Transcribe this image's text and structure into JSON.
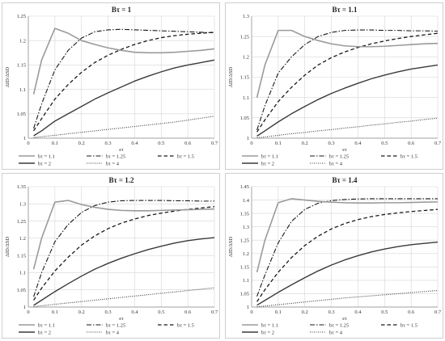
{
  "legend_entries": [
    {
      "label": "bτ = 1.1",
      "color": "#9a9a9a",
      "dash": "",
      "width": 1.6
    },
    {
      "label": "bτ = 1.25",
      "color": "#1a1a1a",
      "dash": "6 2 1.5 2",
      "width": 1.1
    },
    {
      "label": "bτ = 1.5",
      "color": "#1a1a1a",
      "dash": "4.5 3",
      "width": 1.3
    },
    {
      "label": "bτ = 2",
      "color": "#3a3a3a",
      "dash": "",
      "width": 1.4
    },
    {
      "label": "bτ = 4",
      "color": "#3a3a3a",
      "dash": "1 1.5",
      "width": 1.1
    }
  ],
  "chart_data": [
    {
      "type": "line",
      "title": "Bτ = 1",
      "xlabel": "eτ",
      "ylabel": "ΔID/ΔSD",
      "xlim": [
        0,
        0.7
      ],
      "ylim": [
        1,
        1.25
      ],
      "xticks": [
        "0",
        "0.1",
        "0.2",
        "0.3",
        "0.4",
        "0.5",
        "0.6",
        "0.7"
      ],
      "yticks": [
        "1",
        "1.05",
        "1.1",
        "1.15",
        "1.2",
        "1.25"
      ],
      "grid": true,
      "legend_position": "bottom",
      "x": [
        0.02,
        0.05,
        0.1,
        0.15,
        0.2,
        0.25,
        0.3,
        0.35,
        0.4,
        0.45,
        0.5,
        0.55,
        0.6,
        0.65,
        0.7
      ],
      "series": [
        {
          "name": "bτ = 1.1",
          "values": [
            1.09,
            1.16,
            1.225,
            1.215,
            1.2,
            1.192,
            1.185,
            1.18,
            1.176,
            1.175,
            1.175,
            1.176,
            1.178,
            1.18,
            1.183
          ]
        },
        {
          "name": "bτ = 1.25",
          "values": [
            1.02,
            1.07,
            1.14,
            1.18,
            1.205,
            1.218,
            1.222,
            1.223,
            1.222,
            1.221,
            1.22,
            1.219,
            1.218,
            1.217,
            1.216
          ]
        },
        {
          "name": "bτ = 1.5",
          "values": [
            1.015,
            1.04,
            1.08,
            1.11,
            1.135,
            1.155,
            1.17,
            1.182,
            1.192,
            1.2,
            1.206,
            1.21,
            1.213,
            1.215,
            1.217
          ]
        },
        {
          "name": "bτ = 2",
          "values": [
            1.005,
            1.015,
            1.035,
            1.05,
            1.065,
            1.08,
            1.093,
            1.105,
            1.117,
            1.127,
            1.136,
            1.144,
            1.15,
            1.155,
            1.16
          ]
        },
        {
          "name": "bτ = 4",
          "values": [
            1.001,
            1.003,
            1.006,
            1.009,
            1.012,
            1.015,
            1.018,
            1.021,
            1.024,
            1.027,
            1.03,
            1.033,
            1.037,
            1.041,
            1.045
          ]
        }
      ]
    },
    {
      "type": "line",
      "title": "Bτ = 1.1",
      "xlabel": "eτ",
      "ylabel": "ΔID/ΔSD",
      "xlim": [
        0,
        0.7
      ],
      "ylim": [
        1,
        1.3
      ],
      "xticks": [
        "0",
        "0.1",
        "0.2",
        "0.3",
        "0.4",
        "0.5",
        "0.6",
        "0.7"
      ],
      "yticks": [
        "1",
        "1.05",
        "1.1",
        "1.15",
        "1.2",
        "1.25",
        "1.3"
      ],
      "grid": true,
      "legend_position": "bottom",
      "x": [
        0.02,
        0.05,
        0.1,
        0.15,
        0.2,
        0.25,
        0.3,
        0.35,
        0.4,
        0.45,
        0.5,
        0.55,
        0.6,
        0.65,
        0.7
      ],
      "series": [
        {
          "name": "bτ = 1.1",
          "values": [
            1.1,
            1.18,
            1.265,
            1.265,
            1.25,
            1.24,
            1.232,
            1.227,
            1.225,
            1.225,
            1.226,
            1.228,
            1.23,
            1.232,
            1.233
          ]
        },
        {
          "name": "bτ = 1.25",
          "values": [
            1.02,
            1.08,
            1.16,
            1.2,
            1.23,
            1.25,
            1.26,
            1.265,
            1.266,
            1.266,
            1.265,
            1.265,
            1.264,
            1.264,
            1.263
          ]
        },
        {
          "name": "bτ = 1.5",
          "values": [
            1.015,
            1.045,
            1.09,
            1.125,
            1.155,
            1.18,
            1.198,
            1.212,
            1.223,
            1.232,
            1.239,
            1.245,
            1.25,
            1.254,
            1.258
          ]
        },
        {
          "name": "bτ = 2",
          "values": [
            1.005,
            1.018,
            1.04,
            1.06,
            1.078,
            1.095,
            1.11,
            1.123,
            1.135,
            1.146,
            1.155,
            1.163,
            1.17,
            1.175,
            1.18
          ]
        },
        {
          "name": "bτ = 4",
          "values": [
            1.001,
            1.003,
            1.007,
            1.011,
            1.014,
            1.018,
            1.021,
            1.025,
            1.028,
            1.032,
            1.035,
            1.039,
            1.042,
            1.046,
            1.049
          ]
        }
      ]
    },
    {
      "type": "line",
      "title": "Bτ = 1.2",
      "xlabel": "eτ",
      "ylabel": "ΔID/ΔSD",
      "xlim": [
        0,
        0.7
      ],
      "ylim": [
        1,
        1.35
      ],
      "xticks": [
        "0",
        "0.1",
        "0.2",
        "0.3",
        "0.4",
        "0.5",
        "0.6",
        "0.7"
      ],
      "yticks": [
        "1",
        "1.05",
        "1.1",
        "1.15",
        "1.2",
        "1.25",
        "1.3",
        "1.35"
      ],
      "grid": true,
      "legend_position": "bottom",
      "x": [
        0.02,
        0.05,
        0.1,
        0.15,
        0.2,
        0.25,
        0.3,
        0.35,
        0.4,
        0.45,
        0.5,
        0.55,
        0.6,
        0.65,
        0.7
      ],
      "series": [
        {
          "name": "bτ = 1.1",
          "values": [
            1.11,
            1.2,
            1.305,
            1.31,
            1.298,
            1.29,
            1.284,
            1.281,
            1.28,
            1.28,
            1.281,
            1.282,
            1.283,
            1.284,
            1.285
          ]
        },
        {
          "name": "bτ = 1.25",
          "values": [
            1.03,
            1.1,
            1.19,
            1.24,
            1.275,
            1.295,
            1.305,
            1.309,
            1.31,
            1.31,
            1.31,
            1.309,
            1.309,
            1.308,
            1.308
          ]
        },
        {
          "name": "bτ = 1.5",
          "values": [
            1.02,
            1.055,
            1.105,
            1.145,
            1.18,
            1.207,
            1.228,
            1.244,
            1.256,
            1.266,
            1.273,
            1.279,
            1.284,
            1.288,
            1.292
          ]
        },
        {
          "name": "bτ = 2",
          "values": [
            1.005,
            1.02,
            1.045,
            1.068,
            1.09,
            1.11,
            1.127,
            1.142,
            1.155,
            1.167,
            1.177,
            1.186,
            1.193,
            1.198,
            1.202
          ]
        },
        {
          "name": "bτ = 4",
          "values": [
            1.001,
            1.004,
            1.008,
            1.012,
            1.016,
            1.02,
            1.024,
            1.028,
            1.032,
            1.036,
            1.04,
            1.044,
            1.048,
            1.052,
            1.056
          ]
        }
      ]
    },
    {
      "type": "line",
      "title": "Bτ = 1.4",
      "xlabel": "eτ",
      "ylabel": "ΔID/ΔSD",
      "xlim": [
        0,
        0.7
      ],
      "ylim": [
        1,
        1.45
      ],
      "xticks": [
        "0",
        "0.1",
        "0.2",
        "0.3",
        "0.4",
        "0.5",
        "0.6",
        "0.7"
      ],
      "yticks": [
        "1",
        "1.05",
        "1.1",
        "1.15",
        "1.2",
        "1.25",
        "1.3",
        "1.35",
        "1.4",
        "1.45"
      ],
      "grid": true,
      "legend_position": "bottom",
      "x": [
        0.02,
        0.05,
        0.1,
        0.15,
        0.2,
        0.25,
        0.3,
        0.35,
        0.4,
        0.45,
        0.5,
        0.55,
        0.6,
        0.65,
        0.7
      ],
      "series": [
        {
          "name": "bτ = 1.1",
          "values": [
            1.13,
            1.25,
            1.39,
            1.405,
            1.4,
            1.395,
            1.392,
            1.39,
            1.389,
            1.389,
            1.39,
            1.39,
            1.391,
            1.392,
            1.393
          ]
        },
        {
          "name": "bτ = 1.25",
          "values": [
            1.04,
            1.12,
            1.24,
            1.32,
            1.365,
            1.388,
            1.398,
            1.402,
            1.404,
            1.405,
            1.405,
            1.405,
            1.405,
            1.405,
            1.405
          ]
        },
        {
          "name": "bτ = 1.5",
          "values": [
            1.02,
            1.065,
            1.13,
            1.185,
            1.23,
            1.265,
            1.292,
            1.312,
            1.327,
            1.338,
            1.346,
            1.352,
            1.357,
            1.361,
            1.365
          ]
        },
        {
          "name": "bτ = 2",
          "values": [
            1.007,
            1.025,
            1.055,
            1.083,
            1.11,
            1.135,
            1.157,
            1.176,
            1.192,
            1.206,
            1.217,
            1.226,
            1.233,
            1.238,
            1.243
          ]
        },
        {
          "name": "bτ = 4",
          "values": [
            1.001,
            1.004,
            1.009,
            1.014,
            1.019,
            1.024,
            1.029,
            1.034,
            1.038,
            1.042,
            1.046,
            1.05,
            1.054,
            1.058,
            1.062
          ]
        }
      ]
    }
  ]
}
